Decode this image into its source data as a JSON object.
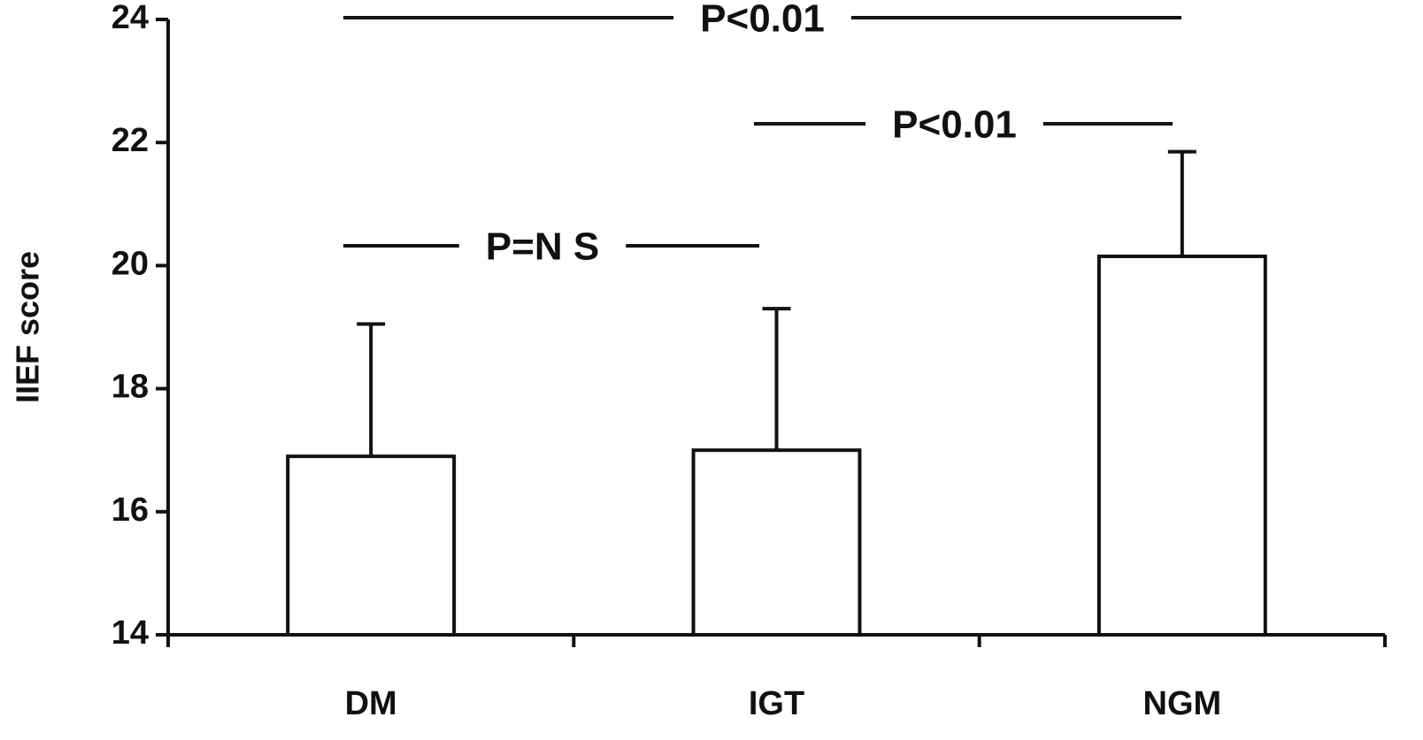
{
  "chart_data": {
    "type": "bar",
    "y_label": "IIEF score",
    "categories": [
      "DM",
      "IGT",
      "NGM"
    ],
    "values": [
      16.9,
      17.0,
      20.15
    ],
    "errors": [
      2.15,
      2.3,
      1.7
    ],
    "color": "#ffffff",
    "ylim": [
      14,
      24
    ],
    "yticks": [
      14,
      16,
      18,
      20,
      22,
      24
    ],
    "annotations": [
      "P=N S",
      "P<0.01",
      "P<0.01"
    ]
  }
}
